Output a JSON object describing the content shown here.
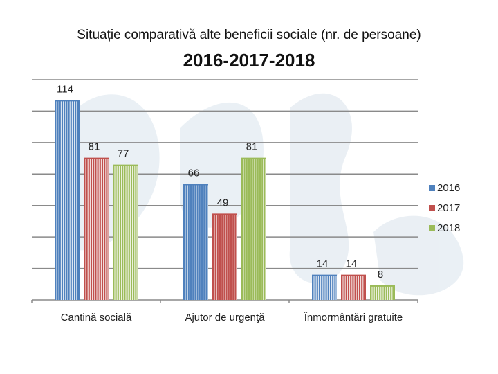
{
  "chart_data": {
    "type": "bar",
    "title": "Situație comparativă alte beneficii sociale (nr. de persoane)",
    "subtitle": "2016-2017-2018",
    "categories": [
      "Cantină socială",
      "Ajutor de urgenţă",
      "Înmormântări gratuite"
    ],
    "series": [
      {
        "name": "2016",
        "color": "#4f81bd",
        "values": [
          114,
          66,
          14
        ]
      },
      {
        "name": "2017",
        "color": "#c0504d",
        "values": [
          81,
          49,
          14
        ]
      },
      {
        "name": "2018",
        "color": "#9bbb59",
        "values": [
          77,
          81,
          8
        ]
      }
    ],
    "ylim": [
      0,
      126
    ],
    "grid": true,
    "legend": "right",
    "xlabel": "",
    "ylabel": ""
  }
}
